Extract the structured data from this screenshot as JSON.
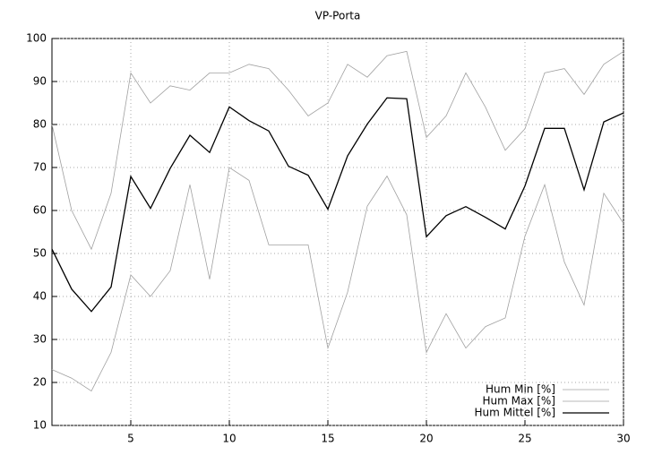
{
  "chart_data": {
    "type": "line",
    "title": "VP-Porta",
    "x": [
      1,
      2,
      3,
      4,
      5,
      6,
      7,
      8,
      9,
      10,
      11,
      12,
      13,
      14,
      15,
      16,
      17,
      18,
      19,
      20,
      21,
      22,
      23,
      24,
      25,
      26,
      27,
      28,
      29,
      30
    ],
    "series": [
      {
        "name": "Hum Min [%]",
        "color": "#a0a0a0",
        "values": [
          23,
          21,
          18,
          27,
          45,
          40,
          46,
          66,
          44,
          70,
          67,
          52,
          52,
          52,
          28,
          41,
          61,
          68,
          59,
          27,
          36,
          28,
          33,
          35,
          54,
          66,
          48,
          38,
          64,
          57
        ]
      },
      {
        "name": "Hum Max [%]",
        "color": "#a0a0a0",
        "values": [
          80,
          60,
          51,
          64,
          92,
          85,
          89,
          88,
          92,
          92,
          94,
          93,
          88,
          82,
          85,
          94,
          91,
          96,
          97,
          77,
          82,
          92,
          84,
          74,
          79,
          92,
          93,
          87,
          94,
          97
        ]
      },
      {
        "name": "Hum Mittel [%]",
        "color": "#000000",
        "values": [
          51,
          41.7,
          36.5,
          42.2,
          67.9,
          60.5,
          69.8,
          77.5,
          73.5,
          84.1,
          80.9,
          78.5,
          70.3,
          68.2,
          60.3,
          72.7,
          80.1,
          86.2,
          86,
          53.9,
          58.8,
          60.9,
          58.4,
          55.7,
          65.7,
          79.1,
          79.1,
          64.8,
          80.6,
          82.7
        ]
      }
    ],
    "xlim": [
      1,
      30
    ],
    "xticks": [
      5,
      10,
      15,
      20,
      25,
      30
    ],
    "ylim": [
      10,
      100
    ],
    "yticks": [
      10,
      20,
      30,
      40,
      50,
      60,
      70,
      80,
      90,
      100
    ],
    "grid": true,
    "legend": "bottom-right"
  }
}
